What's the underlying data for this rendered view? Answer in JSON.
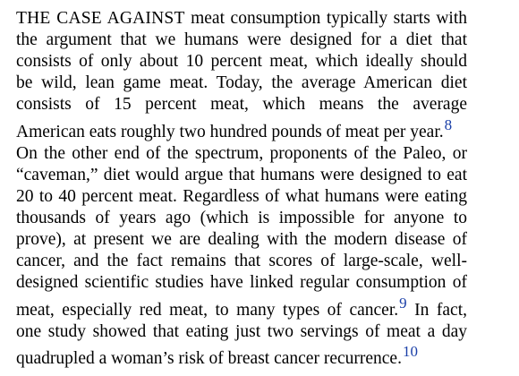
{
  "lines": [
    {
      "lead": "THE CASE AGAINST",
      "text": " meat consumption typically starts with",
      "ref": ""
    },
    {
      "lead": "",
      "text": "the argument that we humans were designed for a diet that",
      "ref": ""
    },
    {
      "lead": "",
      "text": "consists of only about 10 percent meat, which ideally should",
      "ref": ""
    },
    {
      "lead": "",
      "text": "be wild, lean game meat. Today, the average American diet",
      "ref": ""
    },
    {
      "lead": "",
      "text": "consists of 15 percent meat, which means the average",
      "ref": ""
    },
    {
      "lead": "",
      "text": "American eats roughly two hundred pounds of meat per year.",
      "ref": "8"
    },
    {
      "lead": "",
      "text": "On the other end of the spectrum, proponents of the Paleo, or",
      "ref": ""
    },
    {
      "lead": "",
      "text": "“caveman,” diet would argue that humans were designed to eat",
      "ref": ""
    },
    {
      "lead": "",
      "text": "20 to 40 percent meat. Regardless of what humans were eating",
      "ref": ""
    },
    {
      "lead": "",
      "text": "thousands of years ago (which is impossible for anyone to",
      "ref": ""
    },
    {
      "lead": "",
      "text": "prove), at present we are dealing with the modern disease of",
      "ref": ""
    },
    {
      "lead": "",
      "text": "cancer, and the fact remains that scores of large-scale, well-",
      "ref": ""
    },
    {
      "lead": "",
      "text": "designed scientific studies have linked regular consumption of",
      "ref": ""
    },
    {
      "lead": "",
      "text": "meat, especially red meat, to many types of cancer.",
      "ref": "9",
      "tail": " In fact,"
    },
    {
      "lead": "",
      "text": "one study showed that eating just two servings of meat a day",
      "ref": ""
    },
    {
      "lead": "",
      "text": "quadrupled a woman’s risk of breast cancer recurrence.",
      "ref": "10"
    }
  ]
}
